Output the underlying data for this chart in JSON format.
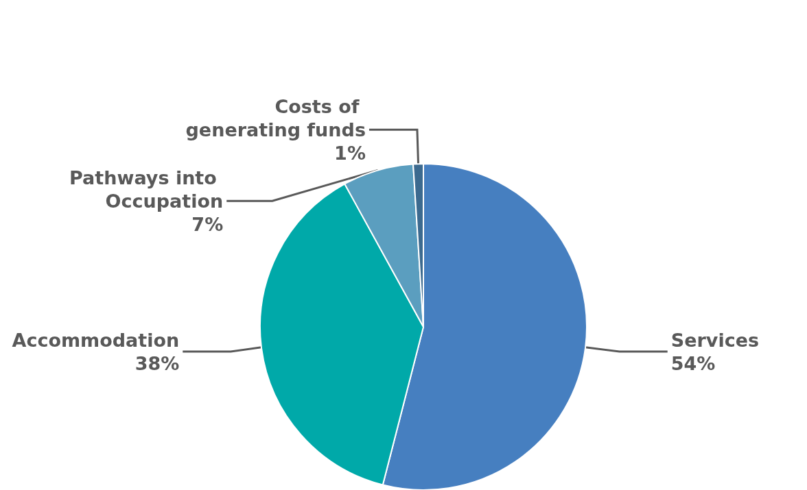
{
  "chart_data": {
    "type": "pie",
    "categories": [
      "Services",
      "Accommodation",
      "Pathways into Occupation",
      "Costs of generating funds"
    ],
    "values": [
      54,
      38,
      7,
      1
    ],
    "value_labels": [
      "54%",
      "38%",
      "7%",
      "1%"
    ],
    "colors": [
      "#467fc0",
      "#00a9a9",
      "#5b9ebf",
      "#3c6a8f"
    ],
    "legend": false
  }
}
